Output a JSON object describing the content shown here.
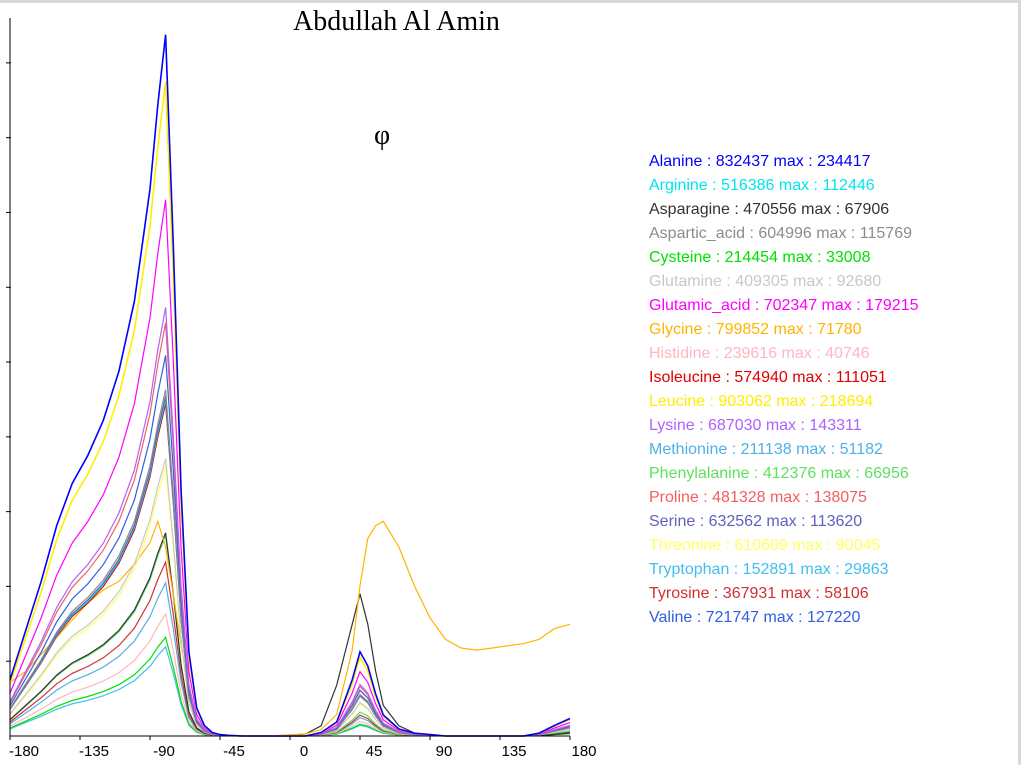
{
  "title": "Abdullah Al Amin",
  "axis_symbol": "φ",
  "chart_data": {
    "type": "line",
    "xlim": [
      -180,
      180
    ],
    "ylim": [
      0,
      240000
    ],
    "x_ticks": [
      -180,
      -135,
      -90,
      -45,
      0,
      45,
      90,
      135,
      180
    ],
    "x": [
      -180,
      -170,
      -160,
      -150,
      -140,
      -130,
      -120,
      -110,
      -100,
      -90,
      -85,
      -80,
      -75,
      -70,
      -65,
      -60,
      -55,
      -50,
      -45,
      -40,
      -30,
      -20,
      -10,
      0,
      10,
      20,
      30,
      40,
      45,
      50,
      55,
      60,
      70,
      80,
      90,
      100,
      110,
      120,
      130,
      140,
      150,
      160,
      170,
      180
    ],
    "grid": false,
    "legend": "right",
    "series": [
      {
        "name": "Alanine",
        "stats": "Alanine : 832437 max : 234417",
        "color": "#0000ff",
        "peak": 234417,
        "profile": 0
      },
      {
        "name": "Arginine",
        "stats": "Arginine : 516386 max : 112446",
        "color": "#00e5ee",
        "peak": 112446,
        "profile": 0
      },
      {
        "name": "Asparagine",
        "stats": "Asparagine : 470556 max : 67906",
        "color": "#333333",
        "peak": 67906,
        "profile": 2
      },
      {
        "name": "Aspartic_acid",
        "stats": "Aspartic_acid : 604996 max : 115769",
        "color": "#8c8c8c",
        "peak": 115769,
        "profile": 0
      },
      {
        "name": "Cysteine",
        "stats": "Cysteine : 214454 max : 33008",
        "color": "#00e000",
        "peak": 33008,
        "profile": 0
      },
      {
        "name": "Glutamine",
        "stats": "Glutamine : 409305 max : 92680",
        "color": "#c8c8c8",
        "peak": 92680,
        "profile": 0
      },
      {
        "name": "Glutamic_acid",
        "stats": "Glutamic_acid : 702347 max : 179215",
        "color": "#ff00ff",
        "peak": 179215,
        "profile": 0
      },
      {
        "name": "Glycine",
        "stats": "Glycine : 799852 max : 71780",
        "color": "#ffb400",
        "peak": 71780,
        "profile": 1
      },
      {
        "name": "Histidine",
        "stats": "Histidine : 239616 max : 40746",
        "color": "#ffb6c1",
        "peak": 40746,
        "profile": 0
      },
      {
        "name": "Isoleucine",
        "stats": "Isoleucine : 574940 max : 111051",
        "color": "#e00000",
        "peak": 111051,
        "profile": 0
      },
      {
        "name": "Leucine",
        "stats": "Leucine : 903062 max : 218694",
        "color": "#ffee00",
        "peak": 218694,
        "profile": 0
      },
      {
        "name": "Lysine",
        "stats": "Lysine : 687030 max : 143311",
        "color": "#b060ff",
        "peak": 143311,
        "profile": 0
      },
      {
        "name": "Methionine",
        "stats": "Methionine : 211138 max : 51182",
        "color": "#50b0e8",
        "peak": 51182,
        "profile": 0
      },
      {
        "name": "Phenylalanine",
        "stats": "Phenylalanine : 412376 max : 66956",
        "color": "#60e060",
        "peak": 66956,
        "profile": 0
      },
      {
        "name": "Proline",
        "stats": "Proline : 481328 max : 138075",
        "color": "#f06060",
        "peak": 138075,
        "profile": 0
      },
      {
        "name": "Serine",
        "stats": "Serine : 632562 max : 113620",
        "color": "#6060c0",
        "peak": 113620,
        "profile": 0
      },
      {
        "name": "Threonine",
        "stats": "Threonine : 610609 max : 90045",
        "color": "#ffff60",
        "peak": 90045,
        "profile": 0
      },
      {
        "name": "Tryptophan",
        "stats": "Tryptophan : 152891 max : 29863",
        "color": "#40c0f0",
        "peak": 29863,
        "profile": 0
      },
      {
        "name": "Tyrosine",
        "stats": "Tyrosine : 367931 max : 58106",
        "color": "#d03030",
        "peak": 58106,
        "profile": 0
      },
      {
        "name": "Valine",
        "stats": "Valine : 721747 max : 127220",
        "color": "#3060e0",
        "peak": 127220,
        "profile": 0
      }
    ],
    "profiles": [
      [
        0.08,
        0.15,
        0.22,
        0.3,
        0.36,
        0.4,
        0.45,
        0.52,
        0.62,
        0.78,
        0.9,
        1.0,
        0.7,
        0.35,
        0.12,
        0.04,
        0.015,
        0.005,
        0.002,
        0.001,
        0,
        0,
        0,
        0,
        0,
        0.005,
        0.02,
        0.08,
        0.12,
        0.1,
        0.06,
        0.03,
        0.01,
        0.004,
        0.002,
        0,
        0,
        0,
        0,
        0,
        0,
        0.004,
        0.015,
        0.025
      ],
      [
        0.25,
        0.3,
        0.38,
        0.46,
        0.54,
        0.62,
        0.68,
        0.72,
        0.8,
        0.9,
        1.0,
        0.88,
        0.66,
        0.42,
        0.2,
        0.08,
        0.03,
        0.01,
        0.004,
        0.002,
        0.001,
        0.001,
        0.002,
        0.005,
        0.01,
        0.03,
        0.1,
        0.4,
        0.7,
        0.92,
        0.98,
        1.0,
        0.88,
        0.7,
        0.55,
        0.45,
        0.41,
        0.4,
        0.41,
        0.42,
        0.43,
        0.45,
        0.5,
        0.52
      ],
      [
        0.08,
        0.15,
        0.22,
        0.3,
        0.36,
        0.4,
        0.45,
        0.52,
        0.62,
        0.78,
        0.9,
        1.0,
        0.7,
        0.35,
        0.12,
        0.04,
        0.015,
        0.005,
        0.002,
        0.001,
        0,
        0,
        0,
        0.005,
        0.01,
        0.05,
        0.25,
        0.55,
        0.7,
        0.55,
        0.32,
        0.15,
        0.05,
        0.015,
        0.005,
        0,
        0,
        0,
        0,
        0,
        0,
        0.002,
        0.008,
        0.015
      ]
    ]
  },
  "legend": {
    "items": [
      {
        "text": "Alanine : 832437 max : 234417",
        "color": "#0000ff"
      },
      {
        "text": "Arginine : 516386 max : 112446",
        "color": "#00e5ee"
      },
      {
        "text": "Asparagine : 470556 max : 67906",
        "color": "#333333"
      },
      {
        "text": "Aspartic_acid : 604996 max : 115769",
        "color": "#8c8c8c"
      },
      {
        "text": "Cysteine : 214454 max : 33008",
        "color": "#00e000"
      },
      {
        "text": "Glutamine : 409305 max : 92680",
        "color": "#c8c8c8"
      },
      {
        "text": "Glutamic_acid : 702347 max : 179215",
        "color": "#ff00ff"
      },
      {
        "text": "Glycine : 799852 max : 71780",
        "color": "#ffb400"
      },
      {
        "text": "Histidine : 239616 max : 40746",
        "color": "#ffb6c1"
      },
      {
        "text": "Isoleucine : 574940 max : 111051",
        "color": "#e00000"
      },
      {
        "text": "Leucine : 903062 max : 218694",
        "color": "#ffee00"
      },
      {
        "text": "Lysine : 687030 max : 143311",
        "color": "#b060ff"
      },
      {
        "text": "Methionine : 211138 max : 51182",
        "color": "#50b0e8"
      },
      {
        "text": "Phenylalanine : 412376 max : 66956",
        "color": "#60e060"
      },
      {
        "text": "Proline : 481328 max : 138075",
        "color": "#f06060"
      },
      {
        "text": "Serine : 632562 max : 113620",
        "color": "#6060c0"
      },
      {
        "text": "Threonine : 610609 max : 90045",
        "color": "#ffff60"
      },
      {
        "text": "Tryptophan : 152891 max : 29863",
        "color": "#40c0f0"
      },
      {
        "text": "Tyrosine : 367931 max : 58106",
        "color": "#d03030"
      },
      {
        "text": "Valine : 721747 max : 127220",
        "color": "#3060e0"
      }
    ]
  }
}
